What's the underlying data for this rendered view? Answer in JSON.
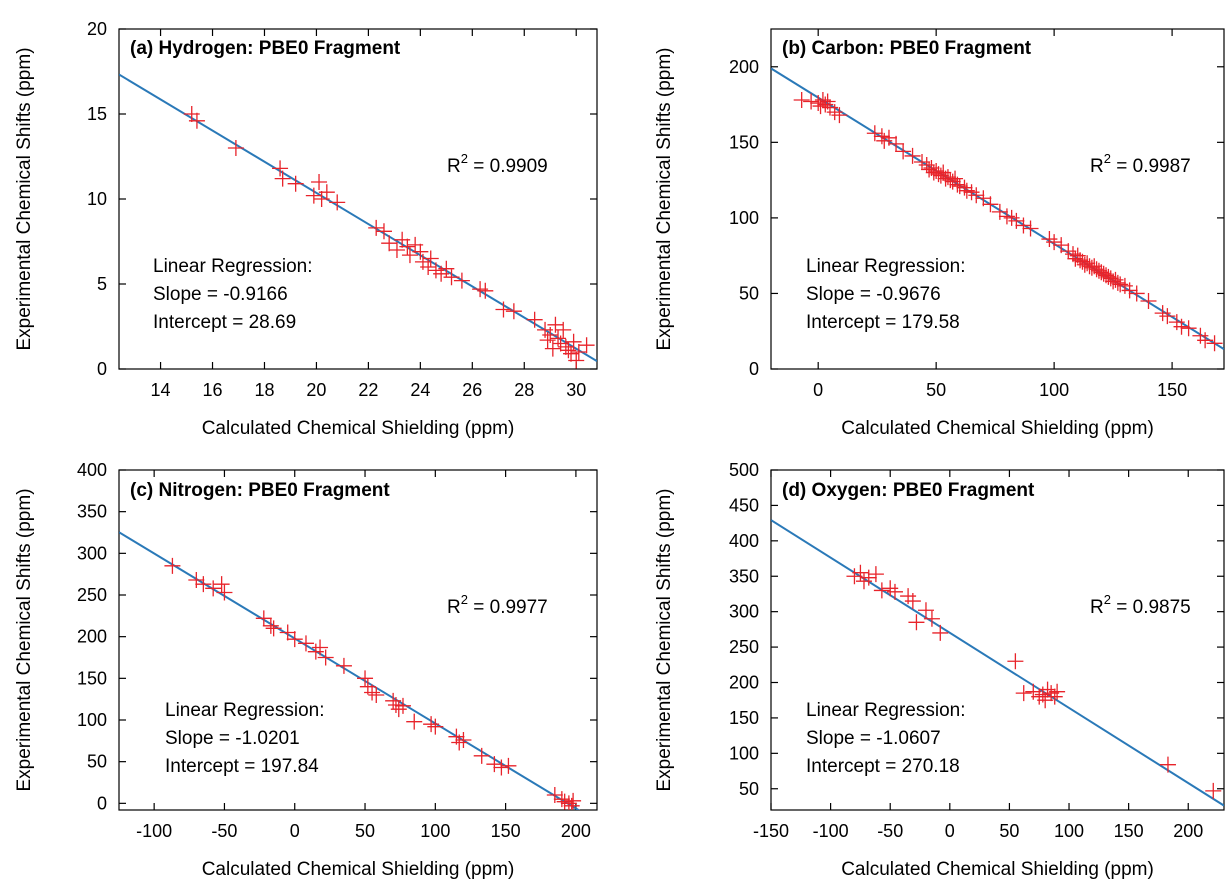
{
  "figure": {
    "x_axis_label": "Calculated Chemical Shielding (ppm)",
    "y_axis_label": "Experimental Chemical Shifts (ppm)"
  },
  "colors": {
    "marker": "#e8232a",
    "fit_line": "#2a79b8",
    "axis": "#000000"
  },
  "chart_data": [
    {
      "type": "scatter",
      "title": "(a) Hydrogen: PBE0 Fragment",
      "xlabel": "Calculated Chemical Shielding (ppm)",
      "ylabel": "Experimental Chemical Shifts (ppm)",
      "xlim": [
        12.4,
        30.8
      ],
      "ylim": [
        0,
        20
      ],
      "xticks": [
        14,
        16,
        18,
        20,
        22,
        24,
        26,
        28,
        30
      ],
      "yticks": [
        0,
        5,
        10,
        15,
        20
      ],
      "r2_label": "R",
      "r2_sup": "2",
      "r2_value": " = 0.9909",
      "regression_lines": [
        "Linear Regression:",
        "Slope = -0.9166",
        "Intercept = 28.69"
      ],
      "fit": {
        "slope": -0.9166,
        "intercept": 28.69
      },
      "points": [
        [
          15.2,
          15.0
        ],
        [
          15.4,
          14.6
        ],
        [
          16.9,
          13.0
        ],
        [
          18.6,
          11.8
        ],
        [
          18.7,
          11.2
        ],
        [
          19.2,
          10.9
        ],
        [
          19.9,
          10.2
        ],
        [
          20.1,
          11.0
        ],
        [
          20.2,
          10.0
        ],
        [
          20.4,
          10.4
        ],
        [
          20.8,
          9.8
        ],
        [
          22.3,
          8.3
        ],
        [
          22.6,
          8.1
        ],
        [
          22.8,
          7.4
        ],
        [
          23.1,
          7.0
        ],
        [
          23.3,
          7.6
        ],
        [
          23.5,
          7.2
        ],
        [
          23.6,
          6.7
        ],
        [
          23.8,
          7.3
        ],
        [
          24.0,
          6.9
        ],
        [
          24.1,
          6.3
        ],
        [
          24.3,
          6.0
        ],
        [
          24.4,
          6.5
        ],
        [
          24.6,
          5.8
        ],
        [
          24.8,
          5.6
        ],
        [
          25.0,
          5.9
        ],
        [
          25.2,
          5.4
        ],
        [
          25.6,
          5.2
        ],
        [
          26.3,
          4.7
        ],
        [
          26.5,
          4.6
        ],
        [
          27.2,
          3.5
        ],
        [
          27.6,
          3.4
        ],
        [
          28.4,
          2.9
        ],
        [
          28.8,
          2.3
        ],
        [
          28.9,
          1.7
        ],
        [
          29.0,
          2.0
        ],
        [
          29.1,
          1.2
        ],
        [
          29.2,
          2.6
        ],
        [
          29.3,
          1.8
        ],
        [
          29.4,
          1.5
        ],
        [
          29.5,
          2.3
        ],
        [
          29.6,
          1.3
        ],
        [
          29.7,
          1.1
        ],
        [
          29.8,
          0.9
        ],
        [
          29.9,
          1.6
        ],
        [
          30.0,
          0.5
        ],
        [
          30.1,
          1.0
        ],
        [
          30.4,
          1.4
        ]
      ]
    },
    {
      "type": "scatter",
      "title": "(b) Carbon: PBE0 Fragment",
      "xlabel": "Calculated Chemical Shielding (ppm)",
      "ylabel": "Experimental Chemical Shifts (ppm)",
      "xlim": [
        -20,
        172
      ],
      "ylim": [
        0,
        225
      ],
      "xticks": [
        0,
        50,
        100,
        150
      ],
      "yticks": [
        0,
        50,
        100,
        150,
        200
      ],
      "r2_label": "R",
      "r2_sup": "2",
      "r2_value": " = 0.9987",
      "regression_lines": [
        "Linear Regression:",
        "Slope = -0.9676",
        "Intercept = 179.58"
      ],
      "fit": {
        "slope": -0.9676,
        "intercept": 179.58
      },
      "points": [
        [
          -7,
          178
        ],
        [
          -3,
          177
        ],
        [
          0,
          176
        ],
        [
          1,
          174
        ],
        [
          2,
          178
        ],
        [
          3,
          175
        ],
        [
          4,
          177
        ],
        [
          5,
          173
        ],
        [
          7,
          170
        ],
        [
          9,
          168
        ],
        [
          24,
          156
        ],
        [
          27,
          154
        ],
        [
          28,
          151
        ],
        [
          30,
          153
        ],
        [
          33,
          149
        ],
        [
          36,
          144
        ],
        [
          40,
          141
        ],
        [
          44,
          137
        ],
        [
          46,
          135
        ],
        [
          47,
          132
        ],
        [
          48,
          133
        ],
        [
          49,
          130
        ],
        [
          50,
          131
        ],
        [
          51,
          129
        ],
        [
          52,
          128
        ],
        [
          53,
          130
        ],
        [
          54,
          126
        ],
        [
          55,
          127
        ],
        [
          56,
          125
        ],
        [
          57,
          124
        ],
        [
          58,
          126
        ],
        [
          59,
          122
        ],
        [
          60,
          121
        ],
        [
          62,
          120
        ],
        [
          63,
          118
        ],
        [
          65,
          117
        ],
        [
          67,
          115
        ],
        [
          70,
          113
        ],
        [
          73,
          109
        ],
        [
          77,
          104
        ],
        [
          80,
          101
        ],
        [
          82,
          100
        ],
        [
          84,
          98
        ],
        [
          87,
          95
        ],
        [
          90,
          93
        ],
        [
          98,
          86
        ],
        [
          100,
          84
        ],
        [
          103,
          82
        ],
        [
          106,
          78
        ],
        [
          108,
          76
        ],
        [
          109,
          73
        ],
        [
          110,
          75
        ],
        [
          111,
          72
        ],
        [
          112,
          71
        ],
        [
          113,
          69
        ],
        [
          114,
          70
        ],
        [
          115,
          68
        ],
        [
          116,
          67
        ],
        [
          117,
          68
        ],
        [
          118,
          66
        ],
        [
          119,
          65
        ],
        [
          120,
          64
        ],
        [
          121,
          63
        ],
        [
          122,
          62
        ],
        [
          123,
          61
        ],
        [
          124,
          60
        ],
        [
          125,
          58
        ],
        [
          126,
          59
        ],
        [
          127,
          57
        ],
        [
          128,
          56
        ],
        [
          130,
          55
        ],
        [
          132,
          52
        ],
        [
          135,
          50
        ],
        [
          140,
          45
        ],
        [
          146,
          37
        ],
        [
          148,
          35
        ],
        [
          152,
          31
        ],
        [
          154,
          28
        ],
        [
          157,
          27
        ],
        [
          162,
          22
        ],
        [
          164,
          19
        ],
        [
          168,
          17
        ]
      ]
    },
    {
      "type": "scatter",
      "title": "(c) Nitrogen: PBE0 Fragment",
      "xlabel": "Calculated Chemical Shielding (ppm)",
      "ylabel": "Experimental Chemical Shifts (ppm)",
      "xlim": [
        -125,
        215
      ],
      "ylim": [
        -8,
        400
      ],
      "xticks": [
        -100,
        -50,
        0,
        50,
        100,
        150,
        200
      ],
      "yticks": [
        0,
        50,
        100,
        150,
        200,
        250,
        300,
        350,
        400
      ],
      "r2_label": "R",
      "r2_sup": "2",
      "r2_value": " = 0.9977",
      "regression_lines": [
        "Linear Regression:",
        "Slope = -1.0201",
        "Intercept = 197.84"
      ],
      "fit": {
        "slope": -1.0201,
        "intercept": 197.84
      },
      "points": [
        [
          -87,
          285
        ],
        [
          -70,
          268
        ],
        [
          -65,
          263
        ],
        [
          -58,
          258
        ],
        [
          -52,
          263
        ],
        [
          -50,
          253
        ],
        [
          -22,
          222
        ],
        [
          -17,
          213
        ],
        [
          -15,
          210
        ],
        [
          -5,
          205
        ],
        [
          0,
          197
        ],
        [
          8,
          192
        ],
        [
          15,
          182
        ],
        [
          18,
          187
        ],
        [
          22,
          175
        ],
        [
          35,
          165
        ],
        [
          50,
          150
        ],
        [
          52,
          140
        ],
        [
          55,
          133
        ],
        [
          58,
          130
        ],
        [
          70,
          123
        ],
        [
          72,
          118
        ],
        [
          74,
          113
        ],
        [
          77,
          117
        ],
        [
          85,
          98
        ],
        [
          97,
          95
        ],
        [
          100,
          92
        ],
        [
          115,
          80
        ],
        [
          117,
          73
        ],
        [
          120,
          76
        ],
        [
          133,
          57
        ],
        [
          142,
          47
        ],
        [
          147,
          43
        ],
        [
          152,
          45
        ],
        [
          185,
          10
        ],
        [
          190,
          5
        ],
        [
          192,
          2
        ],
        [
          195,
          0
        ],
        [
          197,
          -3
        ],
        [
          198,
          3
        ]
      ]
    },
    {
      "type": "scatter",
      "title": "(d) Oxygen: PBE0 Fragment",
      "xlabel": "Calculated Chemical Shielding (ppm)",
      "ylabel": "Experimental Chemical Shifts (ppm)",
      "xlim": [
        -150,
        230
      ],
      "ylim": [
        20,
        500
      ],
      "xticks": [
        -150,
        -100,
        -50,
        0,
        50,
        100,
        150,
        200
      ],
      "yticks": [
        50,
        100,
        150,
        200,
        250,
        300,
        350,
        400,
        450,
        500
      ],
      "r2_label": "R",
      "r2_sup": "2",
      "r2_value": " = 0.9875",
      "regression_lines": [
        "Linear Regression:",
        "Slope = -1.0607",
        "Intercept = 270.18"
      ],
      "fit": {
        "slope": -1.0607,
        "intercept": 270.18
      },
      "points": [
        [
          -80,
          350
        ],
        [
          -75,
          355
        ],
        [
          -72,
          343
        ],
        [
          -68,
          348
        ],
        [
          -62,
          353
        ],
        [
          -57,
          330
        ],
        [
          -50,
          333
        ],
        [
          -46,
          328
        ],
        [
          -35,
          322
        ],
        [
          -31,
          315
        ],
        [
          -28,
          285
        ],
        [
          -20,
          302
        ],
        [
          -15,
          290
        ],
        [
          -8,
          270
        ],
        [
          55,
          230
        ],
        [
          62,
          185
        ],
        [
          70,
          187
        ],
        [
          75,
          180
        ],
        [
          78,
          183
        ],
        [
          80,
          175
        ],
        [
          82,
          190
        ],
        [
          85,
          185
        ],
        [
          88,
          180
        ],
        [
          90,
          187
        ],
        [
          183,
          84
        ],
        [
          221,
          47
        ]
      ]
    }
  ]
}
